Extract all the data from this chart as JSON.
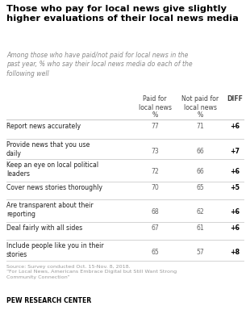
{
  "title": "Those who pay for local news give slightly\nhigher evaluations of their local news media",
  "subtitle": "Among those who have paid/not paid for local news in the\npast year, % who say their local news media do each of the\nfollowing well",
  "col_headers": [
    "Paid for\nlocal news",
    "Not paid for\nlocal news",
    "DIFF"
  ],
  "col_subheaders": [
    "%",
    "%",
    ""
  ],
  "rows": [
    {
      "label": "Report news accurately",
      "paid": "77",
      "notpaid": "71",
      "diff": "+6",
      "two_line": false
    },
    {
      "label": "Provide news that you use\ndaily",
      "paid": "73",
      "notpaid": "66",
      "diff": "+7",
      "two_line": true
    },
    {
      "label": "Keep an eye on local political\nleaders",
      "paid": "72",
      "notpaid": "66",
      "diff": "+6",
      "two_line": true
    },
    {
      "label": "Cover news stories thoroughly",
      "paid": "70",
      "notpaid": "65",
      "diff": "+5",
      "two_line": false
    },
    {
      "label": "Are transparent about their\nreporting",
      "paid": "68",
      "notpaid": "62",
      "diff": "+6",
      "two_line": true
    },
    {
      "label": "Deal fairly with all sides",
      "paid": "67",
      "notpaid": "61",
      "diff": "+6",
      "two_line": false
    },
    {
      "label": "Include people like you in their\nstories",
      "paid": "65",
      "notpaid": "57",
      "diff": "+8",
      "two_line": true
    }
  ],
  "source_text": "Source: Survey conducted Oct. 15-Nov. 8, 2018.\n“For Local News, Americans Embrace Digital but Still Want Strong\nCommunity Connection”",
  "footer": "PEW RESEARCH CENTER",
  "title_color": "#000000",
  "subtitle_color": "#888888",
  "header_color": "#444444",
  "row_label_color": "#222222",
  "data_color": "#666666",
  "diff_color": "#000000",
  "source_color": "#999999",
  "footer_color": "#000000",
  "bg_color": "#ffffff",
  "divider_color": "#cccccc"
}
